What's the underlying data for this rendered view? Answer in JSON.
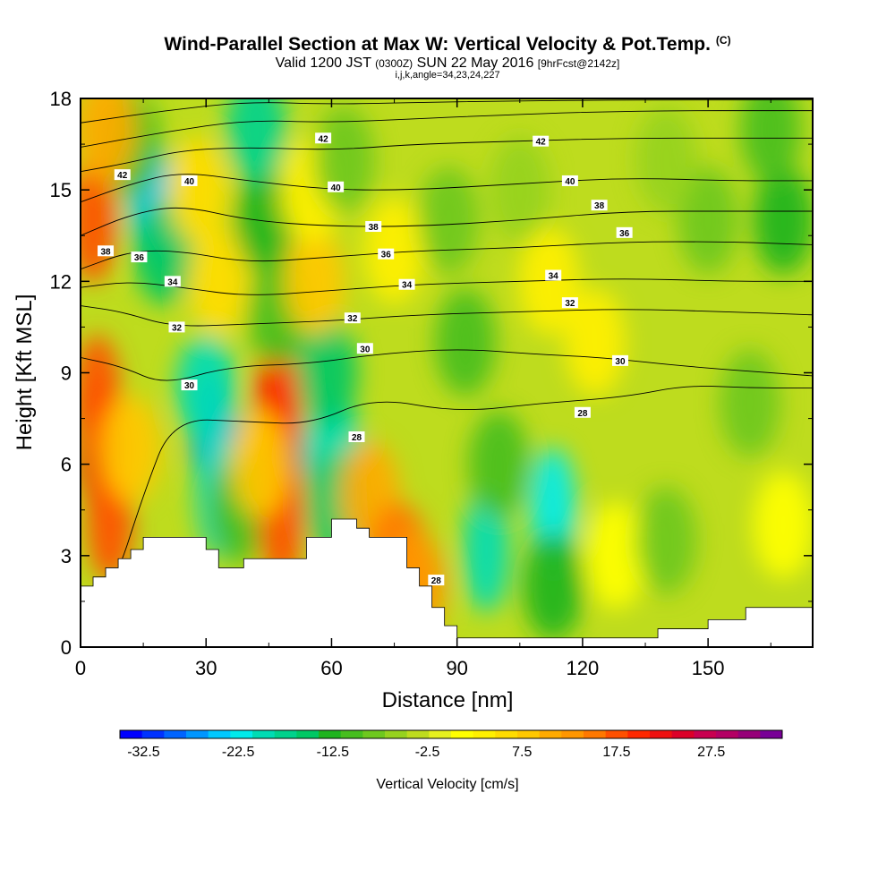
{
  "title": {
    "main": "Wind-Parallel Section at Max W: Vertical Velocity & Pot.Temp.",
    "copyright": "(C)",
    "valid_prefix": "Valid 1200 JST",
    "valid_utc": "(0300Z)",
    "valid_date": "SUN 22 May 2016",
    "forecast": "[9hrFcst@2142z]",
    "params": "i,j,k,angle=34,23,24,227"
  },
  "chart_data": {
    "type": "heatmap",
    "xlabel": "Distance [nm]",
    "ylabel": "Height [Kft MSL]",
    "xlim": [
      0,
      175
    ],
    "ylim": [
      0,
      18
    ],
    "x_ticks": [
      "0",
      "30",
      "60",
      "90",
      "120",
      "150"
    ],
    "x_tick_values": [
      0,
      30,
      60,
      90,
      120,
      150
    ],
    "y_ticks": [
      "0",
      "3",
      "6",
      "9",
      "12",
      "15",
      "18"
    ],
    "y_tick_values": [
      0,
      3,
      6,
      9,
      12,
      15,
      18
    ],
    "colorbar": {
      "title": "Vertical Velocity [cm/s]",
      "labels": [
        "-32.5",
        "-22.5",
        "-12.5",
        "-2.5",
        "7.5",
        "17.5",
        "27.5"
      ],
      "label_values": [
        -32.5,
        -22.5,
        -12.5,
        -2.5,
        7.5,
        17.5,
        27.5
      ],
      "range": [
        -35,
        35
      ],
      "step": 2.5,
      "colors": [
        "#0000ff",
        "#0032ff",
        "#0064ff",
        "#0096ff",
        "#00c8ff",
        "#00ebeb",
        "#00dcb4",
        "#00d28c",
        "#00c864",
        "#1eb41e",
        "#46be1e",
        "#6ec81e",
        "#96d21e",
        "#bedc1e",
        "#e6f01e",
        "#ffff00",
        "#fff000",
        "#ffdc00",
        "#ffc800",
        "#ffaa00",
        "#ff9600",
        "#ff7800",
        "#ff5000",
        "#ff2800",
        "#ee1010",
        "#dc0028",
        "#c80050",
        "#b40064",
        "#960078",
        "#780096"
      ]
    },
    "w_field_cells": [
      {
        "x": 5,
        "z": 6.5,
        "v": 27
      },
      {
        "x": 7,
        "z": 4.2,
        "v": 22
      },
      {
        "x": 4,
        "z": 8.2,
        "v": 20
      },
      {
        "x": 12,
        "z": 6.5,
        "v": 12
      },
      {
        "x": 32,
        "z": 7,
        "v": -26
      },
      {
        "x": 33,
        "z": 5,
        "v": -20
      },
      {
        "x": 30,
        "z": 8.5,
        "v": -18
      },
      {
        "x": 38,
        "z": 4.5,
        "v": -8
      },
      {
        "x": 48,
        "z": 6.2,
        "v": 32
      },
      {
        "x": 47,
        "z": 8,
        "v": 24
      },
      {
        "x": 48,
        "z": 4.2,
        "v": 22
      },
      {
        "x": 43,
        "z": 6,
        "v": 10
      },
      {
        "x": 60,
        "z": 6.5,
        "v": -18
      },
      {
        "x": 59,
        "z": 9,
        "v": -14
      },
      {
        "x": 61,
        "z": 4.6,
        "v": -14
      },
      {
        "x": 69,
        "z": 5,
        "v": 14
      },
      {
        "x": 76,
        "z": 3,
        "v": 18
      },
      {
        "x": 80,
        "z": 2,
        "v": 15
      },
      {
        "x": 97,
        "z": 3.2,
        "v": -20
      },
      {
        "x": 100,
        "z": 6,
        "v": -10
      },
      {
        "x": 113,
        "z": 4.5,
        "v": -22
      },
      {
        "x": 113,
        "z": 2,
        "v": -12
      },
      {
        "x": 128,
        "z": 3,
        "v": 3
      },
      {
        "x": 140,
        "z": 3.5,
        "v": -6
      },
      {
        "x": 17,
        "z": 14.5,
        "v": -25
      },
      {
        "x": 20,
        "z": 13,
        "v": -14
      },
      {
        "x": 12,
        "z": 16.5,
        "v": -8
      },
      {
        "x": 3,
        "z": 14,
        "v": 22
      },
      {
        "x": 6,
        "z": 17,
        "v": 14
      },
      {
        "x": 28,
        "z": 15,
        "v": 8
      },
      {
        "x": 33,
        "z": 12,
        "v": 8
      },
      {
        "x": 44,
        "z": 14,
        "v": -12
      },
      {
        "x": 42,
        "z": 17,
        "v": -16
      },
      {
        "x": 47,
        "z": 11,
        "v": -8
      },
      {
        "x": 56,
        "z": 12,
        "v": 10
      },
      {
        "x": 55,
        "z": 15,
        "v": 6
      },
      {
        "x": 63,
        "z": 16,
        "v": -6
      },
      {
        "x": 75,
        "z": 13,
        "v": 5
      },
      {
        "x": 88,
        "z": 14,
        "v": -7
      },
      {
        "x": 92,
        "z": 10,
        "v": -8
      },
      {
        "x": 105,
        "z": 15,
        "v": -5
      },
      {
        "x": 112,
        "z": 12,
        "v": 5
      },
      {
        "x": 123,
        "z": 10,
        "v": 6
      },
      {
        "x": 150,
        "z": 14,
        "v": -6
      },
      {
        "x": 168,
        "z": 14,
        "v": -12
      },
      {
        "x": 168,
        "z": 4,
        "v": 3
      },
      {
        "x": 160,
        "z": 8,
        "v": -6
      },
      {
        "x": 165,
        "z": 17,
        "v": -8
      },
      {
        "x": 140,
        "z": 16,
        "v": -4
      }
    ],
    "terrain_x": [
      0,
      3,
      6,
      9,
      12,
      15,
      18,
      21,
      24,
      27,
      30,
      33,
      36,
      39,
      42,
      45,
      48,
      51,
      54,
      57,
      60,
      63,
      66,
      69,
      72,
      75,
      78,
      81,
      84,
      87,
      90,
      93,
      96,
      99,
      102,
      105,
      108,
      111,
      114,
      117,
      120,
      123,
      126,
      129,
      132,
      135,
      138,
      141,
      144,
      147,
      150,
      153,
      156,
      159,
      162,
      165,
      168,
      171,
      175
    ],
    "terrain_z": [
      2,
      2.3,
      2.6,
      2.9,
      3.2,
      3.6,
      3.6,
      3.6,
      3.6,
      3.6,
      3.2,
      2.6,
      2.6,
      2.9,
      2.9,
      2.9,
      2.9,
      2.9,
      3.6,
      3.6,
      4.2,
      4.2,
      3.9,
      3.6,
      3.6,
      3.6,
      2.6,
      2.0,
      1.3,
      0.7,
      0.3,
      0.3,
      0.3,
      0.3,
      0.3,
      0.3,
      0.3,
      0.3,
      0.3,
      0.3,
      0.3,
      0.3,
      0.3,
      0.3,
      0.3,
      0.3,
      0.6,
      0.6,
      0.6,
      0.6,
      0.9,
      0.9,
      0.9,
      1.3,
      1.3,
      1.3,
      1.3,
      1.3,
      1.3
    ],
    "theta_contours": [
      {
        "label": "28",
        "points": [
          [
            0,
            0.9
          ],
          [
            8,
            2
          ],
          [
            15,
            5
          ],
          [
            22,
            7.5
          ],
          [
            40,
            7.4
          ],
          [
            55,
            7.3
          ],
          [
            70,
            8.2
          ],
          [
            90,
            7.7
          ],
          [
            110,
            8
          ],
          [
            130,
            8.2
          ],
          [
            145,
            8.6
          ],
          [
            160,
            8.5
          ],
          [
            175,
            8.5
          ]
        ]
      },
      {
        "label": "30",
        "points": [
          [
            0,
            9.5
          ],
          [
            10,
            9.2
          ],
          [
            20,
            8.6
          ],
          [
            35,
            9.2
          ],
          [
            55,
            9.3
          ],
          [
            70,
            9.6
          ],
          [
            90,
            9.8
          ],
          [
            110,
            9.6
          ],
          [
            125,
            9.5
          ],
          [
            145,
            9.2
          ],
          [
            175,
            8.9
          ]
        ]
      },
      {
        "label": "32",
        "points": [
          [
            0,
            11.2
          ],
          [
            10,
            11
          ],
          [
            22,
            10.5
          ],
          [
            40,
            10.6
          ],
          [
            60,
            10.7
          ],
          [
            80,
            10.9
          ],
          [
            105,
            11.0
          ],
          [
            130,
            11.1
          ],
          [
            155,
            11.0
          ],
          [
            175,
            10.9
          ]
        ]
      },
      {
        "label": "34",
        "points": [
          [
            0,
            11.8
          ],
          [
            12,
            12.0
          ],
          [
            24,
            11.8
          ],
          [
            40,
            11.5
          ],
          [
            60,
            11.7
          ],
          [
            80,
            11.9
          ],
          [
            105,
            12.0
          ],
          [
            130,
            12.1
          ],
          [
            155,
            12.0
          ],
          [
            175,
            12.0
          ]
        ]
      },
      {
        "label": "36",
        "points": [
          [
            0,
            12.4
          ],
          [
            12,
            13.0
          ],
          [
            24,
            13.0
          ],
          [
            40,
            12.6
          ],
          [
            60,
            12.8
          ],
          [
            80,
            13.0
          ],
          [
            105,
            13.1
          ],
          [
            130,
            13.3
          ],
          [
            155,
            13.3
          ],
          [
            175,
            13.2
          ]
        ]
      },
      {
        "label": "38",
        "points": [
          [
            0,
            13.5
          ],
          [
            12,
            14.2
          ],
          [
            24,
            14.5
          ],
          [
            40,
            14.0
          ],
          [
            60,
            13.8
          ],
          [
            80,
            13.8
          ],
          [
            105,
            14.0
          ],
          [
            130,
            14.3
          ],
          [
            155,
            14.3
          ],
          [
            175,
            14.3
          ]
        ]
      },
      {
        "label": "40",
        "points": [
          [
            0,
            14.6
          ],
          [
            12,
            15.2
          ],
          [
            24,
            15.6
          ],
          [
            40,
            15.3
          ],
          [
            60,
            15.0
          ],
          [
            80,
            15.0
          ],
          [
            105,
            15.2
          ],
          [
            130,
            15.4
          ],
          [
            155,
            15.3
          ],
          [
            175,
            15.3
          ]
        ]
      },
      {
        "label": "42",
        "points": [
          [
            0,
            15.6
          ],
          [
            12,
            15.9
          ],
          [
            24,
            16.3
          ],
          [
            40,
            16.4
          ],
          [
            60,
            16.3
          ],
          [
            80,
            16.5
          ],
          [
            105,
            16.6
          ],
          [
            130,
            16.7
          ],
          [
            155,
            16.7
          ],
          [
            175,
            16.7
          ]
        ]
      },
      {
        "label": "",
        "points": [
          [
            0,
            16.4
          ],
          [
            20,
            16.9
          ],
          [
            40,
            17.3
          ],
          [
            60,
            17.2
          ],
          [
            90,
            17.4
          ],
          [
            130,
            17.6
          ],
          [
            175,
            17.6
          ]
        ]
      },
      {
        "label": "",
        "points": [
          [
            0,
            17.2
          ],
          [
            20,
            17.6
          ],
          [
            40,
            17.9
          ],
          [
            60,
            17.8
          ],
          [
            90,
            17.9
          ],
          [
            130,
            17.95
          ],
          [
            175,
            17.95
          ]
        ]
      }
    ],
    "contour_labels": [
      {
        "text": "42",
        "x": 10,
        "z": 15.5
      },
      {
        "text": "40",
        "x": 26,
        "z": 15.3
      },
      {
        "text": "42",
        "x": 58,
        "z": 16.7
      },
      {
        "text": "40",
        "x": 61,
        "z": 15.1
      },
      {
        "text": "42",
        "x": 110,
        "z": 16.6
      },
      {
        "text": "40",
        "x": 117,
        "z": 15.3
      },
      {
        "text": "38",
        "x": 124,
        "z": 14.5
      },
      {
        "text": "36",
        "x": 130,
        "z": 13.6
      },
      {
        "text": "38",
        "x": 70,
        "z": 13.8
      },
      {
        "text": "36",
        "x": 73,
        "z": 12.9
      },
      {
        "text": "34",
        "x": 78,
        "z": 11.9
      },
      {
        "text": "34",
        "x": 113,
        "z": 12.2
      },
      {
        "text": "32",
        "x": 117,
        "z": 11.3
      },
      {
        "text": "30",
        "x": 129,
        "z": 9.4
      },
      {
        "text": "28",
        "x": 120,
        "z": 7.7
      },
      {
        "text": "32",
        "x": 65,
        "z": 10.8
      },
      {
        "text": "30",
        "x": 68,
        "z": 9.8
      },
      {
        "text": "30",
        "x": 26,
        "z": 8.6
      },
      {
        "text": "32",
        "x": 23,
        "z": 10.5
      },
      {
        "text": "34",
        "x": 22,
        "z": 12
      },
      {
        "text": "36",
        "x": 14,
        "z": 12.8
      },
      {
        "text": "38",
        "x": 6,
        "z": 13
      },
      {
        "text": "28",
        "x": 66,
        "z": 6.9
      },
      {
        "text": "28",
        "x": 85,
        "z": 2.2
      }
    ]
  }
}
